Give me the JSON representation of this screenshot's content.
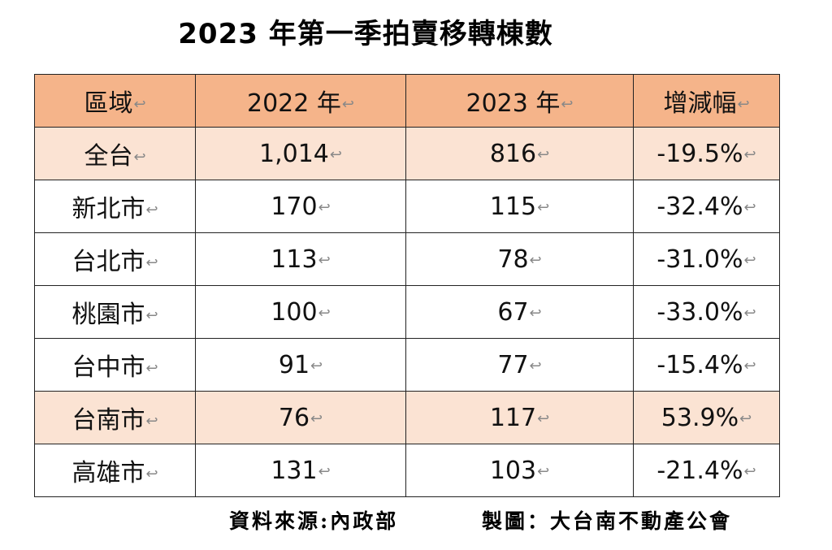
{
  "title": "2023 年第一季拍賣移轉棟數",
  "return_mark": "↩",
  "table": {
    "headers": [
      "區域",
      "2022 年",
      "2023 年",
      "增減幅"
    ],
    "rows": [
      {
        "region": "全台",
        "y2022": "1,014",
        "y2023": "816",
        "change": "-19.5%",
        "highlight": true
      },
      {
        "region": "新北市",
        "y2022": "170",
        "y2023": "115",
        "change": "-32.4%",
        "highlight": false
      },
      {
        "region": "台北市",
        "y2022": "113",
        "y2023": "78",
        "change": "-31.0%",
        "highlight": false
      },
      {
        "region": "桃園市",
        "y2022": "100",
        "y2023": "67",
        "change": "-33.0%",
        "highlight": false
      },
      {
        "region": "台中市",
        "y2022": "91",
        "y2023": "77",
        "change": "-15.4%",
        "highlight": false
      },
      {
        "region": "台南市",
        "y2022": "76",
        "y2023": "117",
        "change": "53.9%",
        "highlight": true
      },
      {
        "region": "高雄市",
        "y2022": "131",
        "y2023": "103",
        "change": "-21.4%",
        "highlight": false
      }
    ]
  },
  "footer": {
    "source": "資料來源:內政部",
    "maker": "製圖：大台南不動產公會"
  },
  "colors": {
    "header_bg": "#f5b48a",
    "highlight_bg": "#fbe3d3",
    "border": "#222222"
  }
}
